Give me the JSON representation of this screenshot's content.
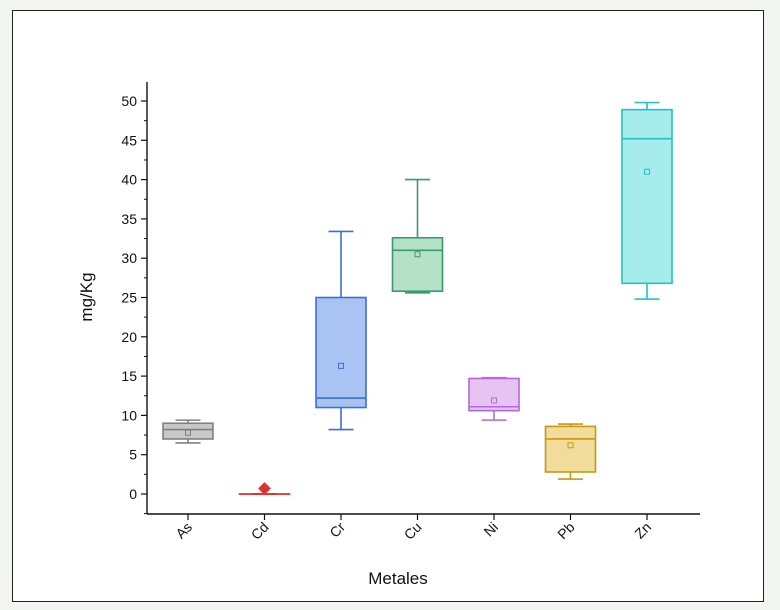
{
  "chart_data": {
    "type": "box",
    "title": "",
    "xlabel": "Metales",
    "ylabel": "mg/Kg",
    "ylim": [
      -2,
      52
    ],
    "yticks": [
      0,
      5,
      10,
      15,
      20,
      25,
      30,
      35,
      40,
      45,
      50
    ],
    "ytick_labels": [
      "0",
      "5",
      "10",
      "15",
      "20",
      "25",
      "30",
      "35",
      "40",
      "45",
      "50"
    ],
    "categories": [
      "As",
      "Cd",
      "Cr",
      "Cu",
      "Ni",
      "Pb",
      "Zn"
    ],
    "series": [
      {
        "category": "As",
        "min": 6.5,
        "q1": 7.0,
        "median": 8.2,
        "q3": 9.0,
        "max": 9.4,
        "mean": 7.8,
        "color": "#808080",
        "fill": "#c8c8c8"
      },
      {
        "category": "Cd",
        "min": 0.0,
        "q1": 0.0,
        "median": 0.0,
        "q3": 0.0,
        "max": 0.0,
        "mean": 0.7,
        "color": "#e03030",
        "fill": "#f4a0a0"
      },
      {
        "category": "Cr",
        "min": 8.2,
        "q1": 11.0,
        "median": 12.2,
        "q3": 25.0,
        "max": 33.4,
        "mean": 16.3,
        "color": "#3a6fd8",
        "fill": "#a9c4f2"
      },
      {
        "category": "Cu",
        "min": 25.6,
        "q1": 25.8,
        "median": 31.0,
        "q3": 32.6,
        "max": 40.0,
        "mean": 30.5,
        "color": "#3a9a6a",
        "fill": "#b5e2c6"
      },
      {
        "category": "Ni",
        "min": 9.4,
        "q1": 10.6,
        "median": 11.1,
        "q3": 14.7,
        "max": 14.8,
        "mean": 11.9,
        "color": "#b36ad4",
        "fill": "#e6c3f2"
      },
      {
        "category": "Pb",
        "min": 1.9,
        "q1": 2.8,
        "median": 7.0,
        "q3": 8.6,
        "max": 8.9,
        "mean": 6.2,
        "color": "#c49a12",
        "fill": "#f1dc9c"
      },
      {
        "category": "Zn",
        "min": 24.8,
        "q1": 26.8,
        "median": 45.2,
        "q3": 48.9,
        "max": 49.8,
        "mean": 41.0,
        "color": "#22c3c3",
        "fill": "#a6ecec"
      }
    ]
  }
}
